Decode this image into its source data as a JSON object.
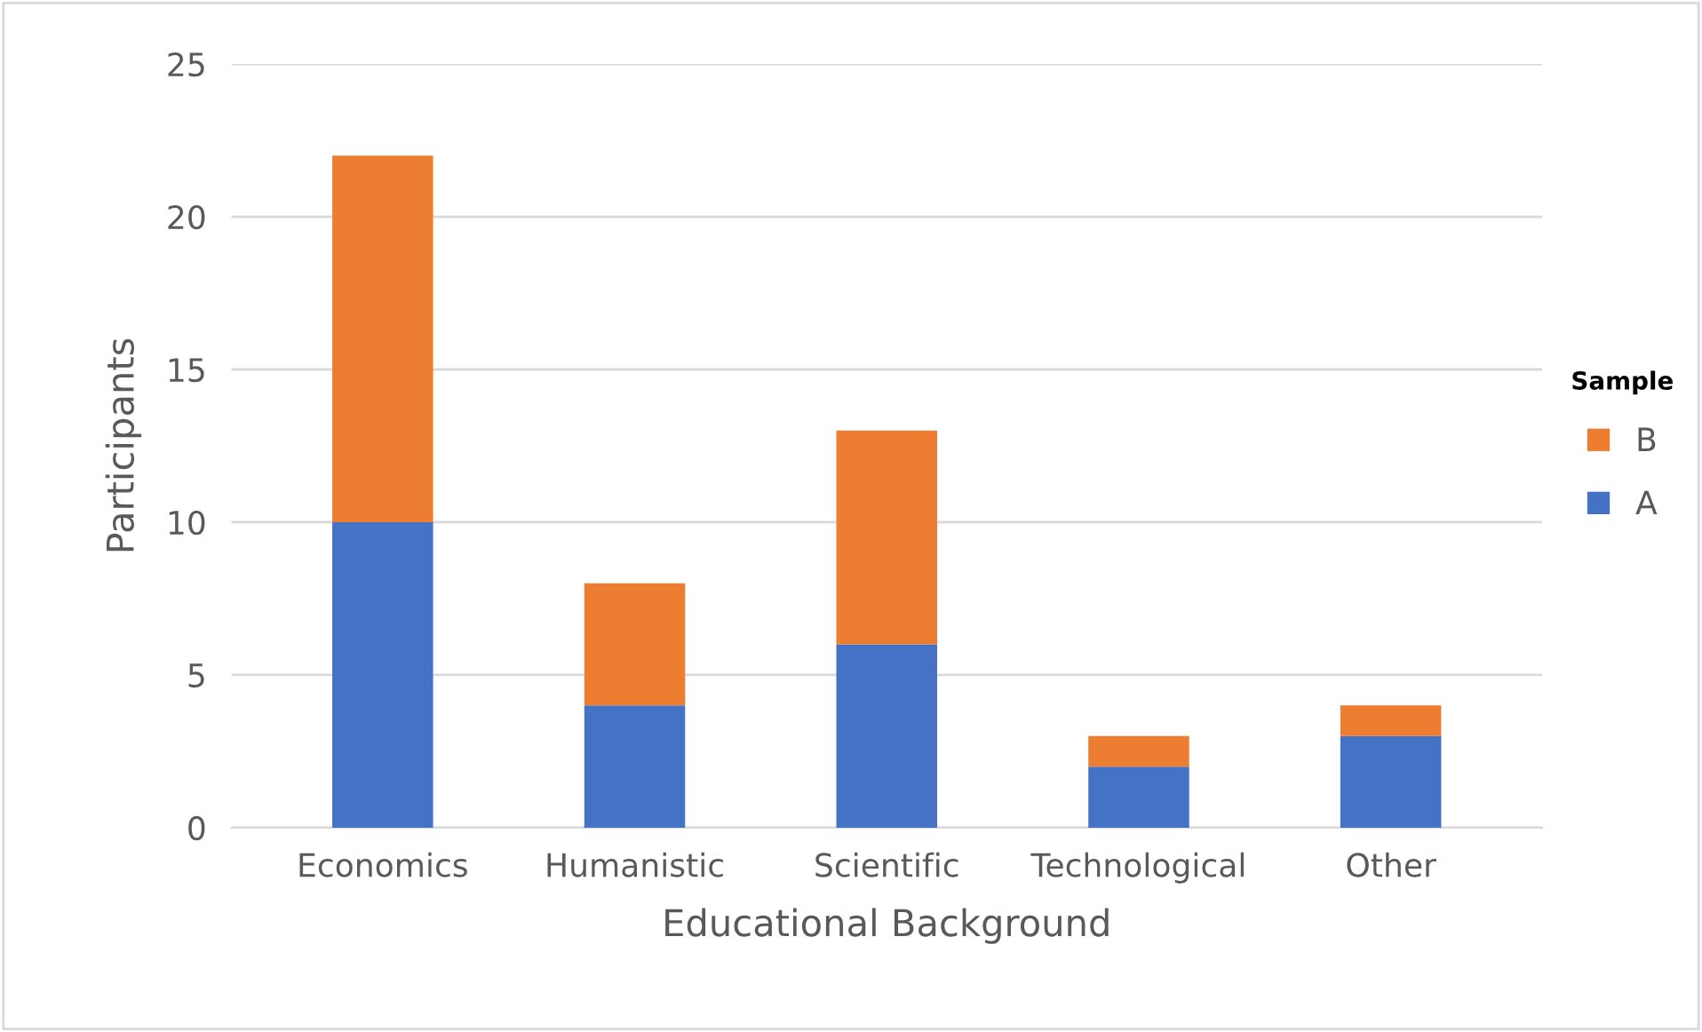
{
  "chart_data": {
    "type": "bar",
    "stacked": true,
    "xlabel": "Educational Background",
    "ylabel": "Participants",
    "legend_title": "Sample",
    "legend": "right",
    "grid": "y",
    "categories": [
      "Economics",
      "Humanistic",
      "Scientific",
      "Technological",
      "Other"
    ],
    "ylim": [
      0,
      25
    ],
    "yticks": [
      0,
      5,
      10,
      15,
      20,
      25
    ],
    "series": [
      {
        "name": "A",
        "color": "#4472c4",
        "values": [
          10,
          4,
          6,
          2,
          3
        ]
      },
      {
        "name": "B",
        "color": "#ed7d31",
        "values": [
          12,
          4,
          7,
          1,
          1
        ]
      }
    ]
  }
}
